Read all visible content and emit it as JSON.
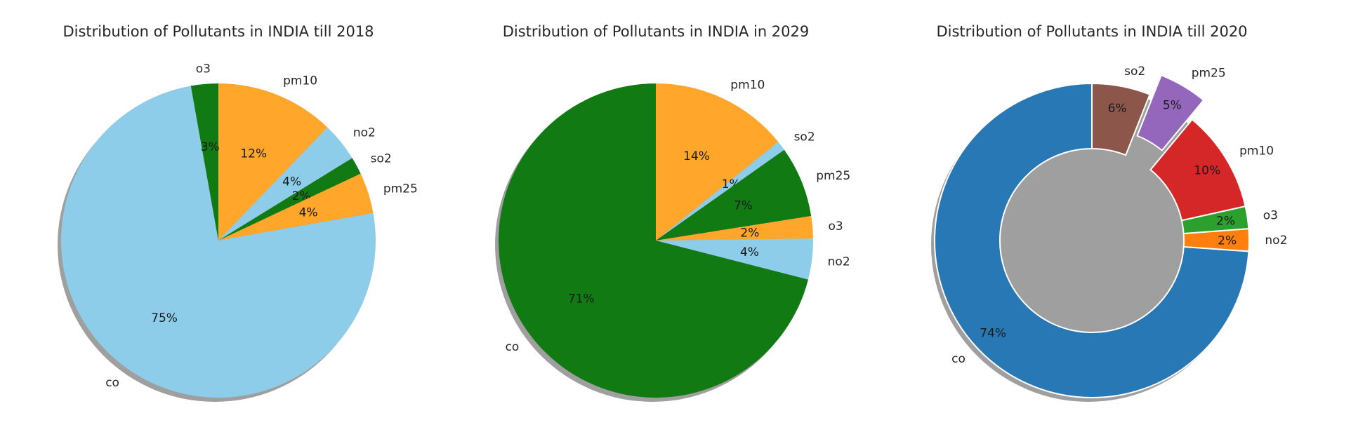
{
  "chart_data": [
    {
      "type": "pie",
      "title": "Distribution of Pollutants in INDIA till 2018",
      "shadow": true,
      "start_angle_deg": 90,
      "direction": "clockwise",
      "slices": [
        {
          "label": "pm10",
          "pct_label": "12%",
          "value": 12.2,
          "color": "#ffa62b"
        },
        {
          "label": "no2",
          "pct_label": "4%",
          "value": 4.0,
          "color": "#8ecde9"
        },
        {
          "label": "so2",
          "pct_label": "2%",
          "value": 1.8,
          "color": "#127a12"
        },
        {
          "label": "pm25",
          "pct_label": "4%",
          "value": 4.2,
          "color": "#ffa62b"
        },
        {
          "label": "co",
          "pct_label": "75%",
          "value": 75.0,
          "color": "#8ecde9"
        },
        {
          "label": "o3",
          "pct_label": "3%",
          "value": 2.8,
          "color": "#127a12"
        }
      ]
    },
    {
      "type": "pie",
      "title": "Distribution of Pollutants in INDIA in 2029",
      "shadow": true,
      "start_angle_deg": 90,
      "direction": "clockwise",
      "slices": [
        {
          "label": "pm10",
          "pct_label": "14%",
          "value": 14.2,
          "color": "#ffa62b"
        },
        {
          "label": "so2",
          "pct_label": "1%",
          "value": 1.0,
          "color": "#8ecde9"
        },
        {
          "label": "pm25",
          "pct_label": "7%",
          "value": 7.3,
          "color": "#127a12"
        },
        {
          "label": "o3",
          "pct_label": "2%",
          "value": 2.3,
          "color": "#ffa62b"
        },
        {
          "label": "no2",
          "pct_label": "4%",
          "value": 4.2,
          "color": "#8ecde9"
        },
        {
          "label": "co",
          "pct_label": "71%",
          "value": 71.0,
          "color": "#127a12"
        }
      ]
    },
    {
      "type": "donut",
      "title": "Distribution of Pollutants in INDIA till 2020",
      "shadow": true,
      "start_angle_deg": 90,
      "direction": "clockwise",
      "hole_ratio": 0.585,
      "slices": [
        {
          "label": "so2",
          "pct_label": "6%",
          "value": 6.0,
          "color": "#8c564b"
        },
        {
          "label": "pm25",
          "pct_label": "5%",
          "value": 5.0,
          "color": "#9467bd",
          "exploded": true
        },
        {
          "label": "pm10",
          "pct_label": "10%",
          "value": 10.5,
          "color": "#d62728"
        },
        {
          "label": "o3",
          "pct_label": "2%",
          "value": 2.3,
          "color": "#2ca02c"
        },
        {
          "label": "no2",
          "pct_label": "2%",
          "value": 2.3,
          "color": "#ff7f0e"
        },
        {
          "label": "co",
          "pct_label": "74%",
          "value": 73.9,
          "color": "#2878b5"
        }
      ]
    }
  ]
}
